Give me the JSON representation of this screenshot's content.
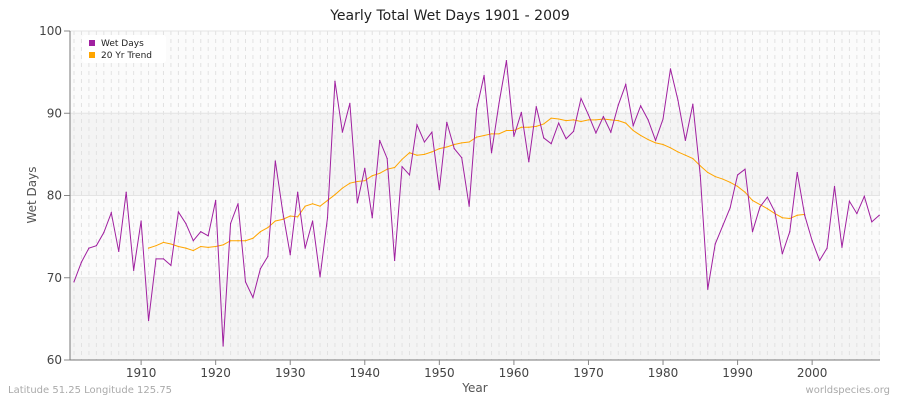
{
  "chart_data": {
    "type": "line",
    "title": "Yearly Total Wet Days 1901 - 2009",
    "xlabel": "Year",
    "ylabel": "Wet Days",
    "xlim": [
      1901,
      2009
    ],
    "ylim": [
      60,
      100
    ],
    "yticks": [
      60,
      70,
      80,
      90,
      100
    ],
    "xticks": [
      1910,
      1920,
      1930,
      1940,
      1950,
      1960,
      1970,
      1980,
      1990,
      2000
    ],
    "grid": true,
    "legend": "top-left",
    "series": [
      {
        "name": "Wet Days",
        "color": "#a020a0",
        "x_start": 1901,
        "values": [
          69.5,
          71.9,
          73.6,
          73.9,
          75.5,
          77.9,
          73.2,
          80.4,
          70.9,
          76.9,
          64.8,
          72.3,
          72.3,
          71.5,
          78.0,
          76.6,
          74.5,
          75.6,
          75.1,
          79.4,
          61.7,
          76.6,
          79.0,
          69.5,
          67.6,
          71.1,
          72.6,
          84.2,
          78.0,
          72.8,
          80.4,
          73.6,
          76.9,
          70.1,
          77.3,
          93.9,
          87.7,
          91.2,
          79.1,
          83.3,
          77.3,
          86.7,
          84.5,
          72.1,
          83.5,
          82.5,
          88.6,
          86.5,
          87.7,
          80.7,
          88.9,
          85.7,
          84.6,
          78.7,
          90.5,
          94.6,
          85.2,
          91.2,
          96.4,
          87.2,
          90.1,
          84.1,
          90.8,
          87.0,
          86.3,
          88.8,
          86.9,
          87.8,
          91.8,
          89.8,
          87.6,
          89.6,
          87.7,
          91.0,
          93.5,
          88.5,
          90.9,
          89.2,
          86.7,
          89.3,
          95.4,
          91.6,
          86.7,
          91.1,
          82.4,
          68.6,
          74.1,
          76.3,
          78.5,
          82.5,
          83.2,
          75.6,
          78.6,
          79.8,
          78.0,
          72.9,
          75.6,
          82.8,
          77.6,
          74.5,
          72.1,
          73.6,
          81.1,
          73.7,
          79.3,
          77.8,
          79.9,
          76.8,
          77.6
        ]
      },
      {
        "name": "20 Yr Trend",
        "color": "#ffa500",
        "x_start": 1911,
        "values": [
          73.6,
          73.9,
          74.3,
          74.1,
          73.8,
          73.6,
          73.3,
          73.8,
          73.7,
          73.8,
          74.0,
          74.5,
          74.5,
          74.5,
          74.8,
          75.6,
          76.1,
          76.9,
          77.1,
          77.5,
          77.4,
          78.7,
          79.0,
          78.7,
          79.4,
          80.1,
          80.9,
          81.5,
          81.7,
          81.8,
          82.4,
          82.7,
          83.2,
          83.4,
          84.4,
          85.2,
          84.9,
          85.0,
          85.3,
          85.7,
          85.9,
          86.2,
          86.4,
          86.5,
          87.1,
          87.3,
          87.5,
          87.5,
          87.9,
          87.9,
          88.3,
          88.3,
          88.4,
          88.7,
          89.4,
          89.3,
          89.1,
          89.2,
          89.0,
          89.2,
          89.2,
          89.3,
          89.2,
          89.1,
          88.8,
          87.9,
          87.3,
          86.8,
          86.4,
          86.2,
          85.8,
          85.3,
          84.9,
          84.5,
          83.6,
          82.8,
          82.3,
          82.0,
          81.6,
          81.1,
          80.4,
          79.4,
          78.9,
          78.4,
          77.8,
          77.3,
          77.2,
          77.6,
          77.7
        ]
      }
    ]
  },
  "footer": {
    "left": "Latitude 51.25 Longitude 125.75",
    "right": "worldspecies.org"
  }
}
